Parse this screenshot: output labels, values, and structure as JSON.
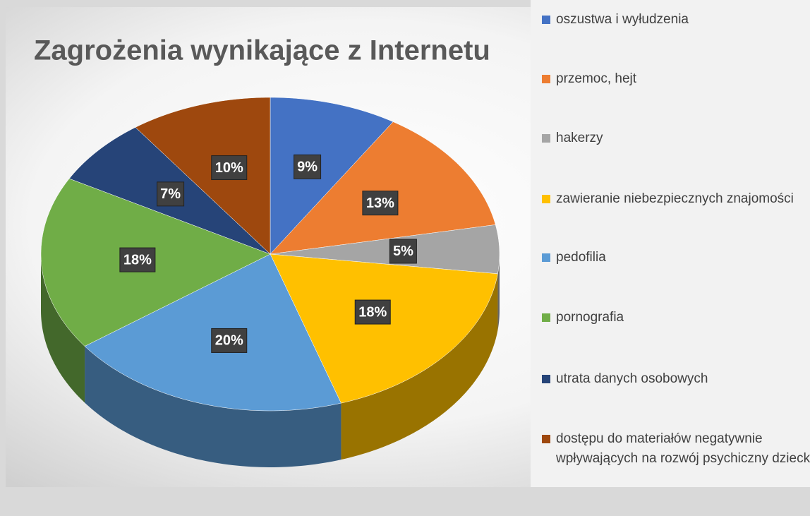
{
  "chart_data": {
    "type": "pie",
    "title": "Zagrożenia wynikające z Internetu",
    "categories": [
      "oszustwa i wyłudzenia",
      "przemoc, hejt",
      "hakerzy",
      "zawieranie niebezpiecznych znajomości",
      "pedofilia",
      "pornografia",
      "utrata danych osobowych",
      "dostępu do materiałów negatywnie wpływających na rozwój psychiczny dziecka"
    ],
    "values": [
      9,
      13,
      5,
      18,
      20,
      18,
      7,
      10
    ],
    "value_labels": [
      "9%",
      "13%",
      "5%",
      "18%",
      "20%",
      "18%",
      "7%",
      "10%"
    ],
    "colors": [
      "#4472c4",
      "#ed7d31",
      "#a5a5a5",
      "#ffc000",
      "#5b9bd5",
      "#70ad47",
      "#264478",
      "#9e480e"
    ],
    "legend": "right"
  }
}
